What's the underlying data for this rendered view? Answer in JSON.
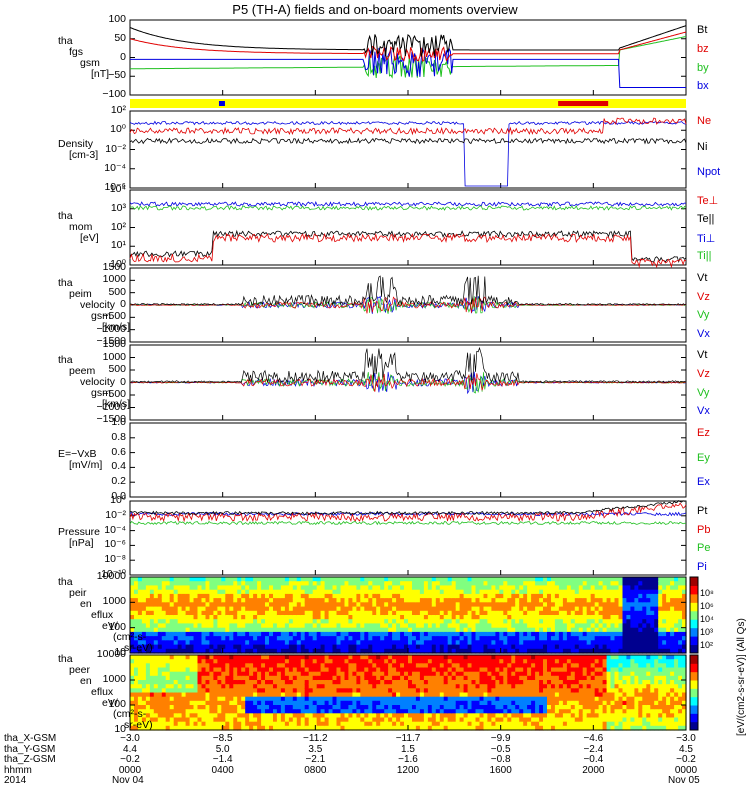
{
  "chart_data": {
    "title": "P5 (TH-A) fields and on-board moments overview",
    "type": "line",
    "panels": [
      {
        "id": "fgs",
        "ylabel": [
          "tha",
          "fgs",
          "gsm",
          "[nT]"
        ],
        "ytick_labels": [
          "100",
          "50",
          "0",
          "−50",
          "−100"
        ],
        "series": [
          {
            "name": "Bt",
            "color": "#000000"
          },
          {
            "name": "bz",
            "color": "#e00000"
          },
          {
            "name": "by",
            "color": "#20c020"
          },
          {
            "name": "bx",
            "color": "#0000e0"
          }
        ]
      },
      {
        "id": "density",
        "ylabel": [
          "Density",
          "[cm-3]"
        ],
        "ytick_labels": [
          "10²",
          "10⁰",
          "10⁻²",
          "10⁻⁴",
          "10⁻⁶"
        ],
        "series": [
          {
            "name": "Ne",
            "color": "#e00000"
          },
          {
            "name": "Ni",
            "color": "#000000"
          },
          {
            "name": "Npot",
            "color": "#0000e0"
          }
        ]
      },
      {
        "id": "temp",
        "ylabel": [
          "tha",
          "mom",
          "[eV]"
        ],
        "ytick_labels": [
          "10⁴",
          "10³",
          "10²",
          "10¹",
          "10⁰"
        ],
        "series": [
          {
            "name": "Te⊥",
            "color": "#e00000"
          },
          {
            "name": "Te||",
            "color": "#000000"
          },
          {
            "name": "Ti⊥",
            "color": "#0000e0"
          },
          {
            "name": "Ti||",
            "color": "#20c020"
          }
        ]
      },
      {
        "id": "peim",
        "ylabel": [
          "tha",
          "peim",
          "velocity",
          "gsm",
          "[km/s]"
        ],
        "ytick_labels": [
          "1500",
          "1000",
          "500",
          "0",
          "−500",
          "−1000",
          "−1500"
        ],
        "series": [
          {
            "name": "Vt",
            "color": "#000000"
          },
          {
            "name": "Vz",
            "color": "#e00000"
          },
          {
            "name": "Vy",
            "color": "#20c020"
          },
          {
            "name": "Vx",
            "color": "#0000e0"
          }
        ]
      },
      {
        "id": "peem",
        "ylabel": [
          "tha",
          "peem",
          "velocity",
          "gsm",
          "[km/s]"
        ],
        "ytick_labels": [
          "1500",
          "1000",
          "500",
          "0",
          "−500",
          "−1000",
          "−1500"
        ],
        "series": [
          {
            "name": "Vt",
            "color": "#000000"
          },
          {
            "name": "Vz",
            "color": "#e00000"
          },
          {
            "name": "Vy",
            "color": "#20c020"
          },
          {
            "name": "Vx",
            "color": "#0000e0"
          }
        ]
      },
      {
        "id": "efield",
        "ylabel": [
          "E=−VxB",
          "[mV/m]"
        ],
        "ytick_labels": [
          "1.0",
          "0.8",
          "0.6",
          "0.4",
          "0.2",
          "0.0"
        ],
        "series": [
          {
            "name": "Ez",
            "color": "#e00000"
          },
          {
            "name": "Ey",
            "color": "#20c020"
          },
          {
            "name": "Ex",
            "color": "#0000e0"
          }
        ]
      },
      {
        "id": "pressure",
        "ylabel": [
          "Pressure",
          "[nPa]"
        ],
        "ytick_labels": [
          "10⁰",
          "10⁻²",
          "10⁻⁴",
          "10⁻⁶",
          "10⁻⁸",
          "10⁻¹⁰"
        ],
        "series": [
          {
            "name": "Pt",
            "color": "#000000"
          },
          {
            "name": "Pb",
            "color": "#e00000"
          },
          {
            "name": "Pe",
            "color": "#20c020"
          },
          {
            "name": "Pi",
            "color": "#0000e0"
          }
        ]
      },
      {
        "id": "peir",
        "ylabel": [
          "tha",
          "peir",
          "en",
          "eflux",
          "eV/",
          "(cm²-s-",
          "sr-eV)"
        ],
        "ytick_labels": [
          "10000",
          "1000",
          "100",
          "10"
        ]
      },
      {
        "id": "peer",
        "ylabel": [
          "tha",
          "peer",
          "en",
          "eflux",
          "eV/",
          "(cm²-s-",
          "sr-eV)"
        ],
        "ytick_labels": [
          "10000",
          "1000",
          "100",
          "10"
        ]
      }
    ],
    "colorbar_label": "[eV/(cm2-s-sr-eV)] (All Qs)",
    "colorbar_ticks": [
      "10⁸",
      "10⁶",
      "10⁴",
      "10³",
      "10²"
    ],
    "x_rows": [
      {
        "label": "tha_X-GSM",
        "values": [
          "−3.0",
          "−8.5",
          "−11.2",
          "−11.7",
          "−9.9",
          "−4.6",
          "−3.0"
        ]
      },
      {
        "label": "tha_Y-GSM",
        "values": [
          "4.4",
          "5.0",
          "3.5",
          "1.5",
          "−0.5",
          "−2.4",
          "4.5"
        ]
      },
      {
        "label": "tha_Z-GSM",
        "values": [
          "−0.2",
          "−1.4",
          "−2.1",
          "−1.6",
          "−0.8",
          "−0.4",
          "−0.2"
        ]
      },
      {
        "label": "hhmm",
        "values": [
          "0000",
          "0400",
          "0800",
          "1200",
          "1600",
          "2000",
          "0000"
        ]
      },
      {
        "label": "2014",
        "values": [
          "Nov 04",
          "",
          "",
          "",
          "",
          "",
          "Nov 05"
        ]
      }
    ]
  }
}
